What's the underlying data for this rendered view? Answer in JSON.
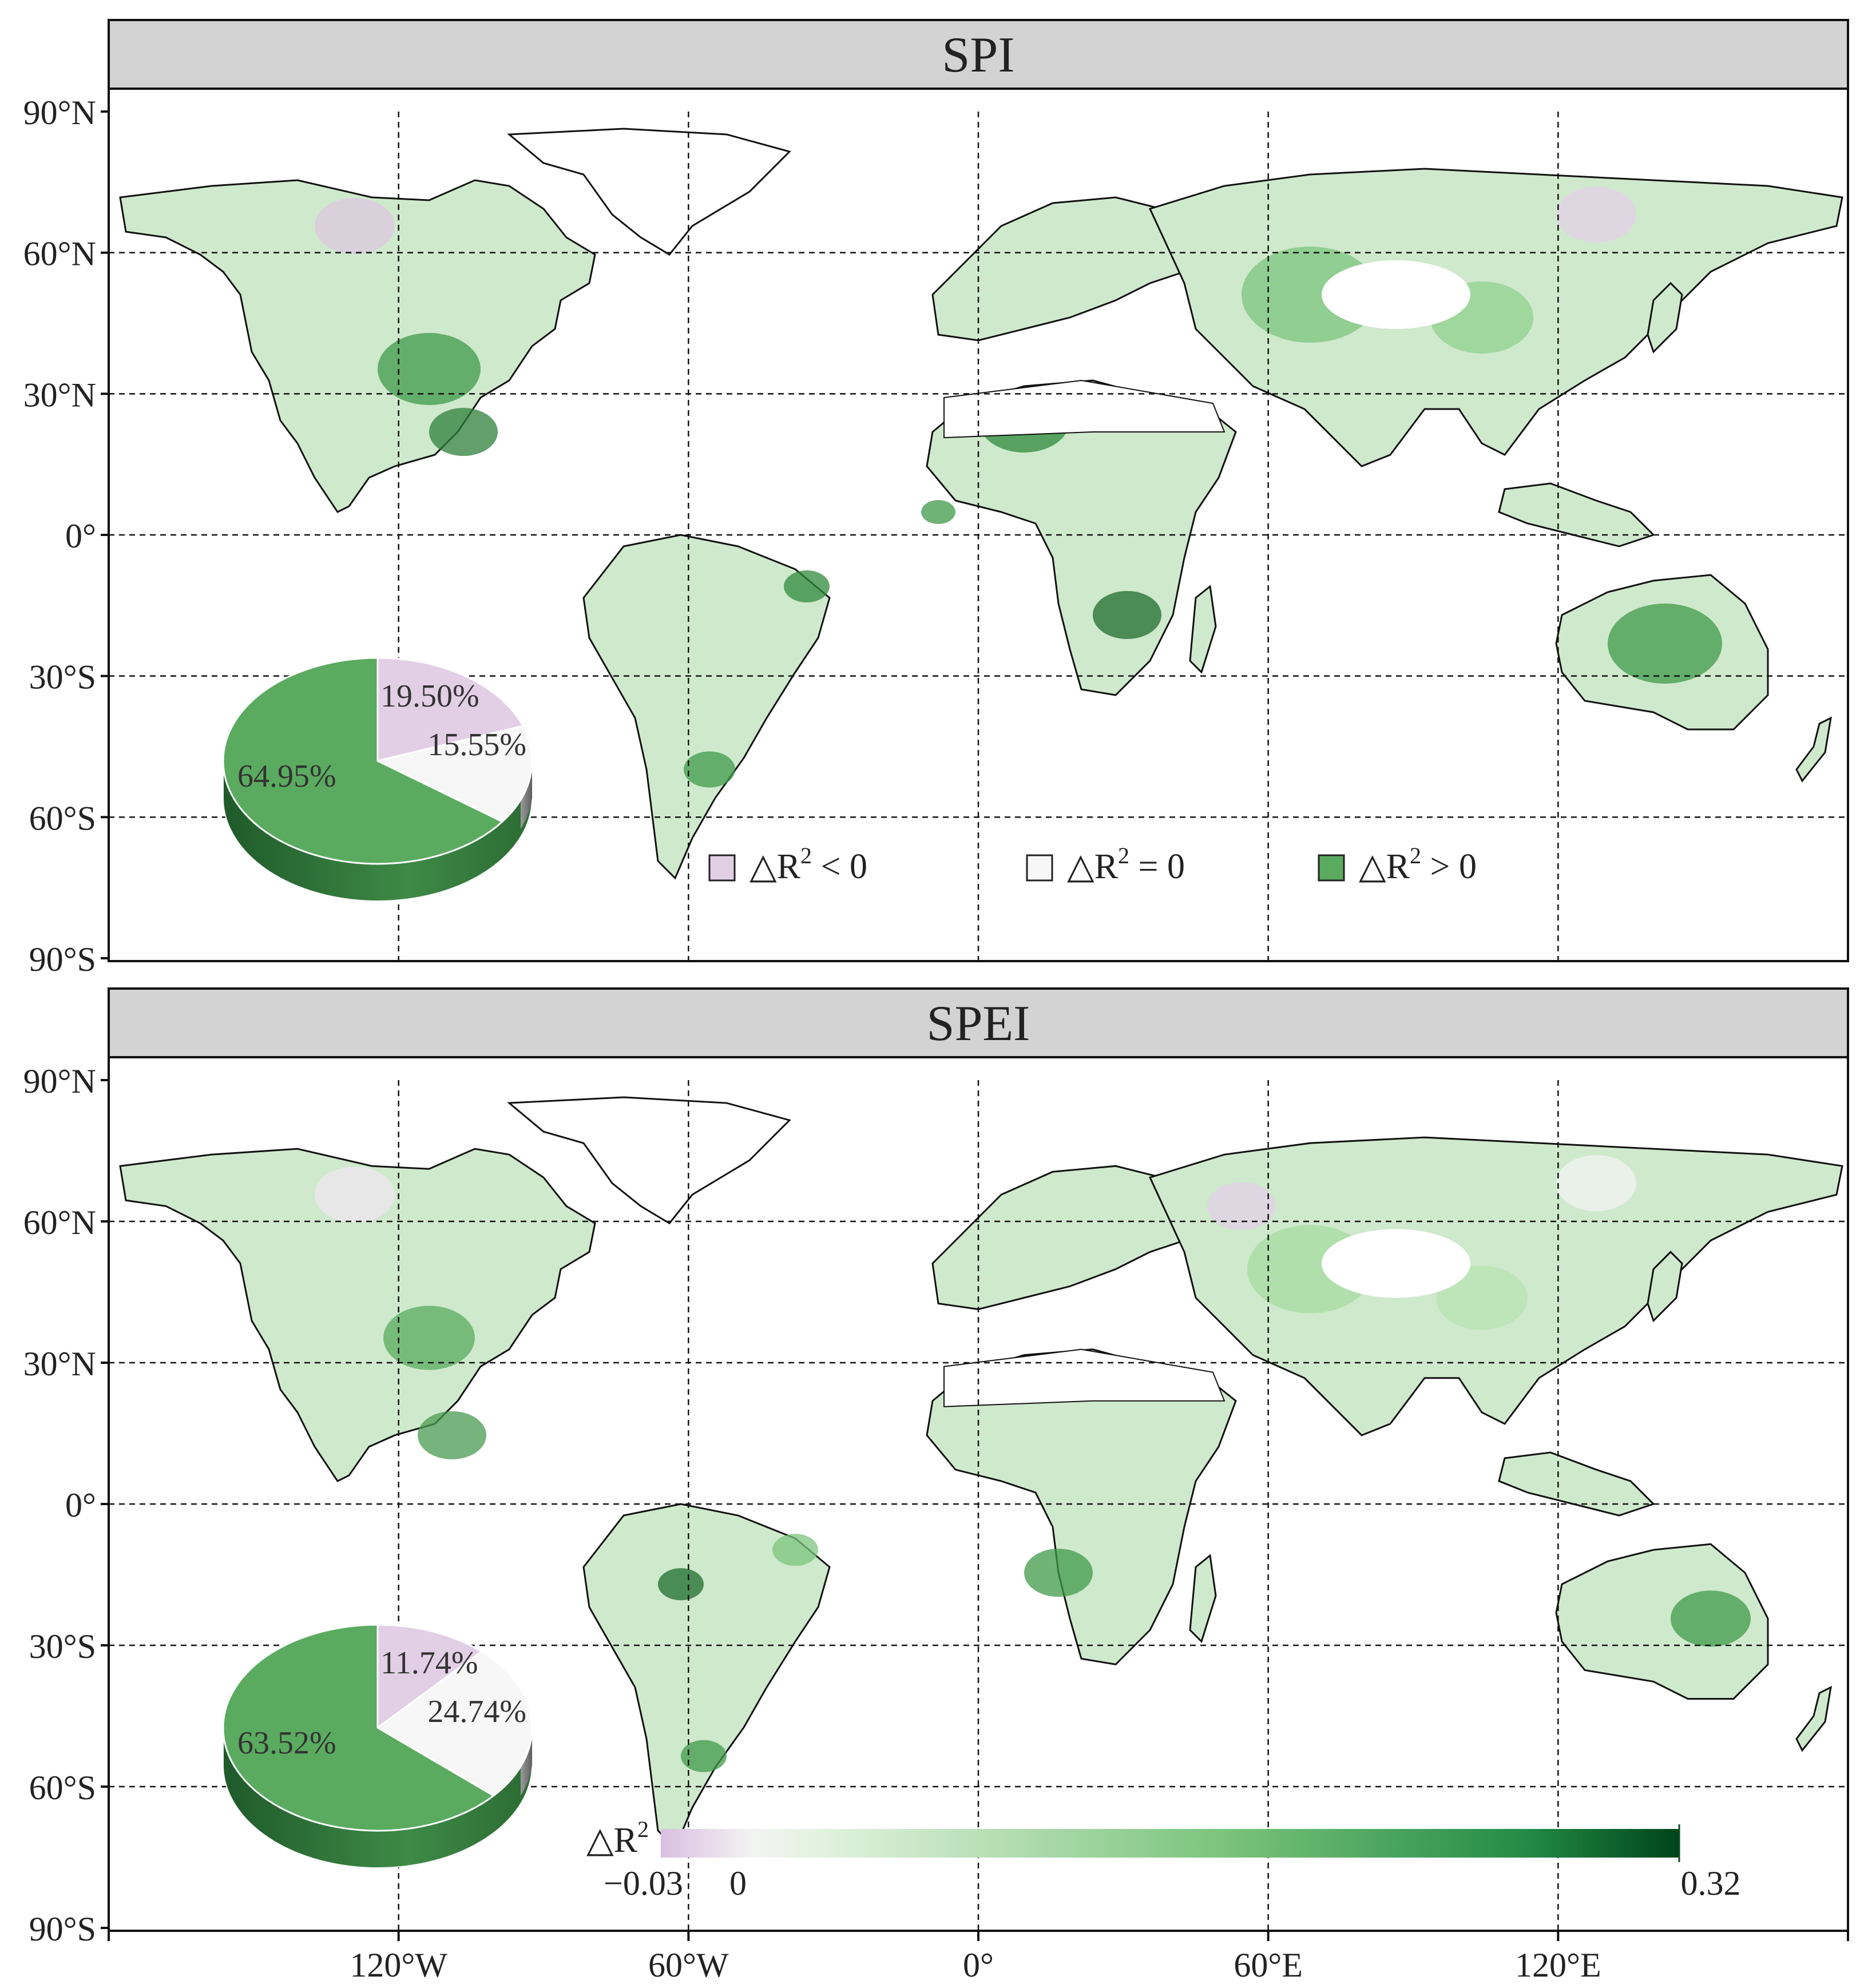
{
  "panels": [
    {
      "title": "SPI",
      "pie": {
        "negative": "19.50%",
        "zero": "15.55%",
        "positive": "64.95%",
        "values": [
          19.5,
          15.55,
          64.95
        ]
      },
      "legend": [
        {
          "label_prefix": "△R",
          "sup": "2",
          "label_suffix": " < 0",
          "color": "#e2cfe6"
        },
        {
          "label_prefix": "△R",
          "sup": "2",
          "label_suffix": " = 0",
          "color": "#f7f7f7"
        },
        {
          "label_prefix": "△R",
          "sup": "2",
          "label_suffix": " > 0",
          "color": "#5aab5f"
        }
      ]
    },
    {
      "title": "SPEI",
      "pie": {
        "negative": "11.74%",
        "zero": "24.74%",
        "positive": "63.52%",
        "values": [
          11.74,
          24.74,
          63.52
        ]
      },
      "colorbar": {
        "label": "△R",
        "sup": "2",
        "min": "−0.03",
        "mid": "0",
        "max": "0.32"
      }
    }
  ],
  "axes": {
    "lat_labels": [
      "90°N",
      "60°N",
      "30°N",
      "0°",
      "30°S",
      "60°S",
      "90°S"
    ],
    "lon_labels": [
      "120°W",
      "60°W",
      "0°",
      "60°E",
      "120°E"
    ]
  },
  "colors": {
    "negative": "#e2cfe6",
    "zero": "#f7f7f7",
    "positive": "#5aab5f",
    "positive_dark": "#0b4f25",
    "header_bg": "#d3d3d3"
  }
}
